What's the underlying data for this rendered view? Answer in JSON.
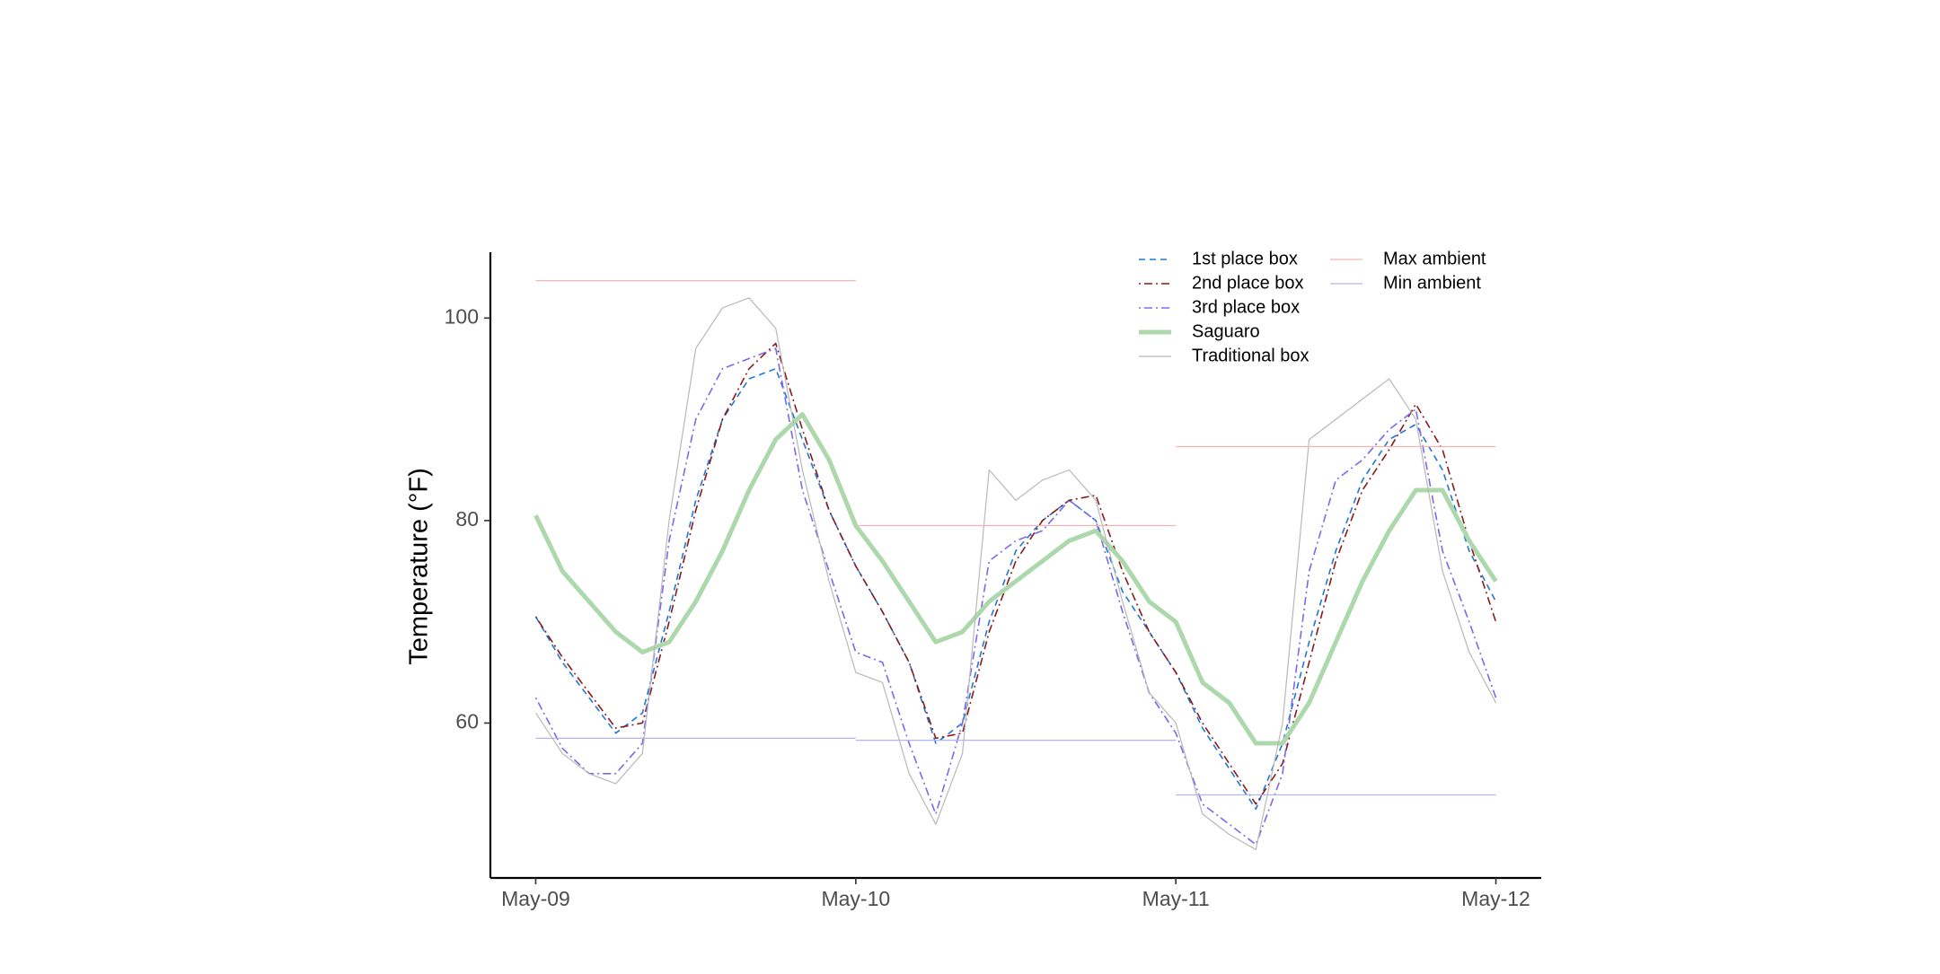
{
  "chart_data": {
    "type": "line",
    "ylabel": "Temperature (°F)",
    "x": [
      0,
      2,
      4,
      6,
      8,
      10,
      12,
      14,
      16,
      18,
      20,
      22,
      24,
      26,
      28,
      30,
      32,
      34,
      36,
      38,
      40,
      42,
      44,
      46,
      48,
      50,
      52,
      54,
      56,
      58,
      60,
      62,
      64,
      66,
      68,
      70,
      72
    ],
    "xlim": [
      -3.4,
      75.4
    ],
    "xticks": [
      {
        "value": 0,
        "label": "May-09"
      },
      {
        "value": 24,
        "label": "May-10"
      },
      {
        "value": 48,
        "label": "May-11"
      },
      {
        "value": 72,
        "label": "May-12"
      }
    ],
    "ylim": [
      44.7,
      106.5
    ],
    "yticks": [
      60,
      80,
      100
    ],
    "grid": false,
    "legend": "top-right",
    "series": [
      {
        "name": "1st place box",
        "color": "#1f78d4",
        "dash": "dashed",
        "width": 1.6,
        "values": [
          70.5,
          66,
          62.5,
          59,
          61,
          71,
          82,
          90,
          94,
          95,
          88,
          81,
          75.5,
          71,
          66,
          58,
          60,
          70,
          77,
          80,
          82,
          80,
          73,
          69,
          65,
          59.5,
          55.5,
          51.5,
          58,
          68,
          77,
          84,
          88,
          89.5,
          85,
          77,
          72
        ]
      },
      {
        "name": "2nd place box",
        "color": "#8b1a1a",
        "dash": "dotdash",
        "width": 1.6,
        "values": [
          70.5,
          66.5,
          63,
          59.5,
          60,
          70,
          81,
          90,
          95,
          97.5,
          89,
          81,
          75.5,
          71,
          66,
          58.5,
          59,
          69,
          76,
          80,
          82,
          82.5,
          75,
          69,
          65,
          60,
          56,
          52,
          56,
          66,
          76,
          83,
          87,
          91.5,
          87,
          78,
          70
        ]
      },
      {
        "name": "3rd place box",
        "color": "#7b68ee",
        "dash": "dotdash",
        "width": 1.6,
        "values": [
          62.5,
          57.5,
          55,
          55,
          58,
          78,
          90,
          95,
          96,
          97,
          83,
          75,
          67,
          66,
          58,
          51,
          60,
          76,
          78,
          79,
          82,
          80,
          71,
          63,
          59,
          52,
          50,
          48,
          55,
          75,
          84,
          86,
          89,
          91,
          77,
          70,
          62.5
        ]
      },
      {
        "name": "Saguaro",
        "color": "#acd8ac",
        "dash": "solid",
        "width": 5,
        "values": [
          80.5,
          75,
          72,
          69,
          67,
          68,
          72,
          77,
          83,
          88,
          90.5,
          86,
          79.5,
          76,
          72,
          68,
          69,
          72,
          74,
          76,
          78,
          79,
          76,
          72,
          70,
          64,
          62,
          58,
          58,
          62,
          68,
          74,
          79,
          83,
          83,
          78,
          74
        ]
      },
      {
        "name": "Traditional box",
        "color": "#b8b8b8",
        "dash": "solid",
        "width": 1.2,
        "values": [
          61,
          57,
          55,
          54,
          57,
          80,
          97,
          101,
          102,
          99,
          85,
          74,
          65,
          64,
          55,
          50,
          57,
          85,
          82,
          84,
          85,
          82,
          72,
          63,
          60,
          51,
          49,
          47.5,
          60,
          88,
          90,
          92,
          94,
          90,
          75,
          67,
          62
        ]
      },
      {
        "name": "Max ambient",
        "color": "#f4b4b4",
        "dash": "solid",
        "width": 1.2,
        "x": [
          0,
          24,
          24,
          24,
          48,
          48,
          48,
          72
        ],
        "values": [
          103.7,
          103.7,
          null,
          79.5,
          79.5,
          null,
          87.3,
          87.3
        ]
      },
      {
        "name": "Min ambient",
        "color": "#b4b4f0",
        "dash": "solid",
        "width": 1.2,
        "x": [
          0,
          24,
          24,
          24,
          48,
          48,
          48,
          72
        ],
        "values": [
          58.5,
          58.5,
          null,
          58.3,
          58.3,
          null,
          52.9,
          52.9
        ]
      }
    ]
  }
}
